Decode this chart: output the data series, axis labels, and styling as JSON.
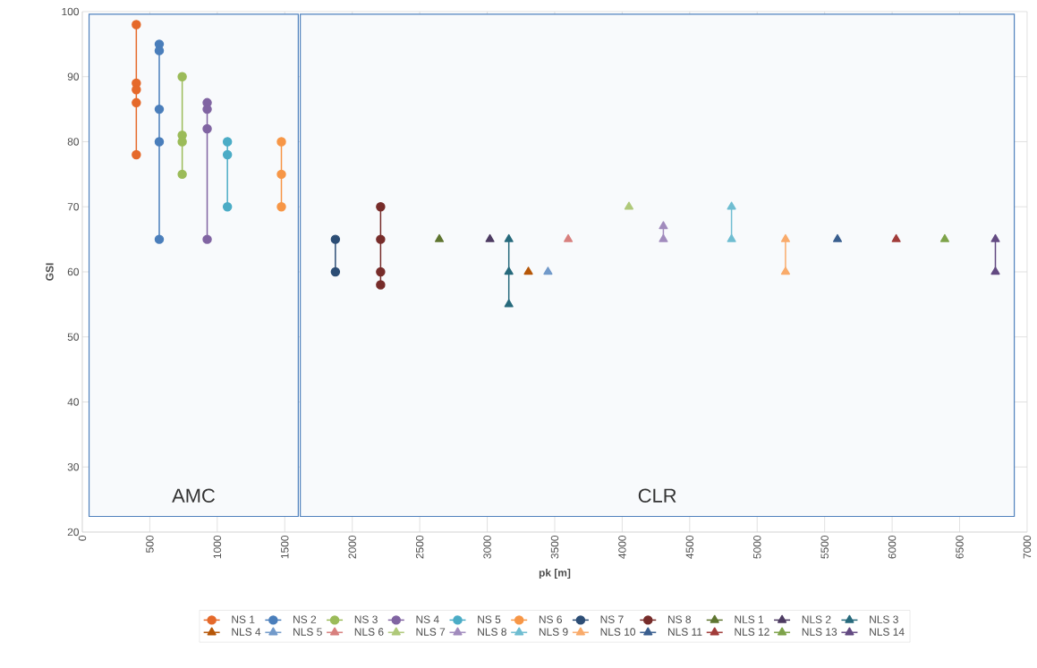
{
  "chart_data": {
    "type": "line",
    "xlabel": "pk [m]",
    "ylabel": "GSI",
    "xlim": [
      0,
      7000
    ],
    "ylim": [
      20,
      100
    ],
    "xticks": [
      0,
      500,
      1000,
      1500,
      2000,
      2500,
      3000,
      3500,
      4000,
      4500,
      5000,
      5500,
      6000,
      6500,
      7000
    ],
    "yticks": [
      20,
      30,
      40,
      50,
      60,
      70,
      80,
      90,
      100
    ],
    "grid": true,
    "legend": "bottom",
    "bands": [
      {
        "axis": "x",
        "from": 50,
        "to": 1600,
        "label": "AMC",
        "color": "#4f81bd"
      },
      {
        "axis": "x",
        "from": 1615,
        "to": 6905,
        "label": "CLR",
        "color": "#4f81bd"
      }
    ],
    "series": [
      {
        "name": "NS 1",
        "color": "#e5692a",
        "marker": "circle",
        "x": [
          400,
          400,
          400,
          400,
          400
        ],
        "values": [
          98,
          89,
          88,
          86,
          78
        ]
      },
      {
        "name": "NS 2",
        "color": "#4a7ebb",
        "marker": "circle",
        "x": [
          570,
          570,
          570,
          570,
          570
        ],
        "values": [
          95,
          94,
          85,
          80,
          65
        ]
      },
      {
        "name": "NS 3",
        "color": "#9bbb59",
        "marker": "circle",
        "x": [
          740,
          740,
          740,
          740
        ],
        "values": [
          90,
          81,
          80,
          75
        ]
      },
      {
        "name": "NS 4",
        "color": "#8064a2",
        "marker": "circle",
        "x": [
          925,
          925,
          925,
          925
        ],
        "values": [
          86,
          85,
          82,
          65
        ]
      },
      {
        "name": "NS 5",
        "color": "#4bacc6",
        "marker": "circle",
        "x": [
          1075,
          1075,
          1075
        ],
        "values": [
          80,
          78,
          70
        ]
      },
      {
        "name": "NS 6",
        "color": "#f79646",
        "marker": "circle",
        "x": [
          1475,
          1475,
          1475
        ],
        "values": [
          80,
          75,
          70
        ]
      },
      {
        "name": "NS 7",
        "color": "#2c4d75",
        "marker": "circle",
        "x": [
          1875,
          1875
        ],
        "values": [
          65,
          60
        ]
      },
      {
        "name": "NS 8",
        "color": "#772c2a",
        "marker": "circle",
        "x": [
          2210,
          2210,
          2210,
          2210
        ],
        "values": [
          70,
          65,
          60,
          58
        ]
      },
      {
        "name": "NLS 1",
        "color": "#5f7530",
        "marker": "triangle",
        "x": [
          2645
        ],
        "values": [
          65
        ]
      },
      {
        "name": "NLS 2",
        "color": "#4d3b62",
        "marker": "triangle",
        "x": [
          3020
        ],
        "values": [
          65
        ]
      },
      {
        "name": "NLS 3",
        "color": "#276a7c",
        "marker": "triangle",
        "x": [
          3160,
          3160,
          3160
        ],
        "values": [
          65,
          60,
          55
        ]
      },
      {
        "name": "NLS 4",
        "color": "#b65708",
        "marker": "triangle",
        "x": [
          3305
        ],
        "values": [
          60
        ]
      },
      {
        "name": "NLS 5",
        "color": "#729aca",
        "marker": "triangle",
        "x": [
          3450
        ],
        "values": [
          60
        ]
      },
      {
        "name": "NLS 6",
        "color": "#d8807e",
        "marker": "triangle",
        "x": [
          3600
        ],
        "values": [
          65
        ]
      },
      {
        "name": "NLS 7",
        "color": "#afc97a",
        "marker": "triangle",
        "x": [
          4050
        ],
        "values": [
          70
        ]
      },
      {
        "name": "NLS 8",
        "color": "#a18bbd",
        "marker": "triangle",
        "x": [
          4305,
          4305
        ],
        "values": [
          67,
          65
        ]
      },
      {
        "name": "NLS 9",
        "color": "#6fbdd1",
        "marker": "triangle",
        "x": [
          4810,
          4810
        ],
        "values": [
          70,
          65
        ]
      },
      {
        "name": "NLS 10",
        "color": "#f9ab6b",
        "marker": "triangle",
        "x": [
          5210,
          5210
        ],
        "values": [
          65,
          60
        ]
      },
      {
        "name": "NLS 11",
        "color": "#3a5f8f",
        "marker": "triangle",
        "x": [
          5595
        ],
        "values": [
          65
        ]
      },
      {
        "name": "NLS 12",
        "color": "#a13c3a",
        "marker": "triangle",
        "x": [
          6030
        ],
        "values": [
          65
        ]
      },
      {
        "name": "NLS 13",
        "color": "#7ea34a",
        "marker": "triangle",
        "x": [
          6390
        ],
        "values": [
          65
        ]
      },
      {
        "name": "NLS 14",
        "color": "#634a82",
        "marker": "triangle",
        "x": [
          6765,
          6765
        ],
        "values": [
          65,
          60
        ]
      }
    ]
  }
}
